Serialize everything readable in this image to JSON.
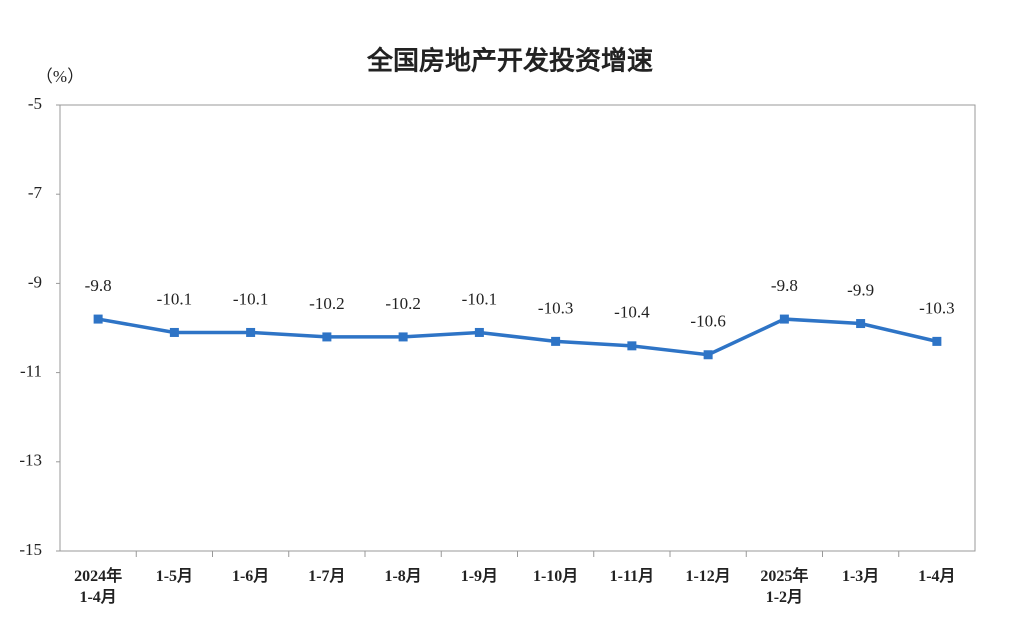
{
  "chart_data": {
    "type": "line",
    "title": "全国房地产开发投资增速",
    "y_label": "（%）",
    "categories": [
      "2024年\n1-4月",
      "1-5月",
      "1-6月",
      "1-7月",
      "1-8月",
      "1-9月",
      "1-10月",
      "1-11月",
      "1-12月",
      "2025年\n1-2月",
      "1-3月",
      "1-4月"
    ],
    "series": [
      {
        "name": "全国房地产开发投资增速",
        "color": "#2e74c6",
        "values": [
          -9.8,
          -10.1,
          -10.1,
          -10.2,
          -10.2,
          -10.1,
          -10.3,
          -10.4,
          -10.6,
          -9.8,
          -9.9,
          -10.3
        ]
      }
    ],
    "ylim": [
      -15,
      -5
    ],
    "yticks": [
      -15,
      -13,
      -11,
      -9,
      -7,
      -5
    ],
    "grid": false
  }
}
